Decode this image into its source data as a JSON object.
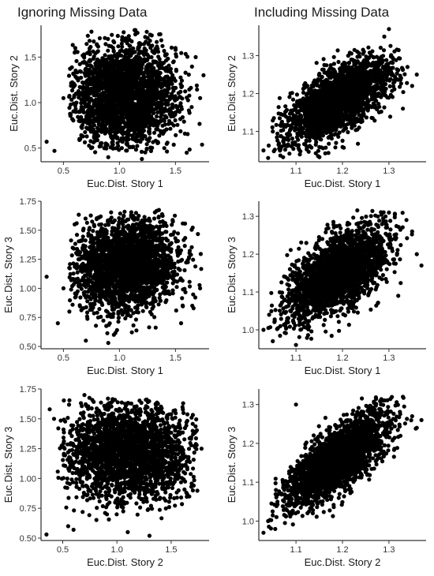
{
  "columns": [
    "Ignoring Missing Data",
    "Including Missing Data"
  ],
  "chart_data": [
    {
      "type": "scatter",
      "title": "",
      "xlabel": "Euc.Dist. Story 1",
      "ylabel": "Euc.Dist. Story 2",
      "xlim": [
        0.3,
        1.8
      ],
      "ylim": [
        0.35,
        1.85
      ],
      "xticks": [
        0.5,
        1.0,
        1.5
      ],
      "xtick_labels": [
        "0.5",
        "1.0",
        "1.5"
      ],
      "yticks": [
        0.5,
        1.0,
        1.5
      ],
      "ytick_labels": [
        "0.5",
        "1.0",
        "1.5"
      ],
      "grid": false,
      "cloud": {
        "mean": [
          1.05,
          1.08
        ],
        "sd": [
          0.23,
          0.28
        ],
        "corr": 0.0,
        "n": 2500,
        "bounds_x": [
          0.55,
          1.75
        ],
        "bounds_y": [
          0.45,
          1.8
        ]
      },
      "x": [
        0.35,
        0.42,
        0.5,
        0.6,
        0.65,
        1.5,
        1.6,
        1.68,
        1.72,
        1.75,
        0.75,
        1.4,
        1.2,
        0.9
      ],
      "y": [
        0.57,
        0.47,
        1.05,
        1.55,
        0.6,
        1.6,
        0.45,
        1.5,
        1.05,
        1.3,
        1.78,
        0.5,
        0.38,
        0.4
      ]
    },
    {
      "type": "scatter",
      "title": "",
      "xlabel": "Euc.Dist. Story 1",
      "ylabel": "Euc.Dist. Story 2",
      "xlim": [
        1.02,
        1.38
      ],
      "ylim": [
        1.02,
        1.38
      ],
      "xticks": [
        1.1,
        1.2,
        1.3
      ],
      "xtick_labels": [
        "1.1",
        "1.2",
        "1.3"
      ],
      "yticks": [
        1.1,
        1.2,
        1.3
      ],
      "ytick_labels": [
        "1.1",
        "1.2",
        "1.3"
      ],
      "grid": false,
      "cloud": {
        "mean": [
          1.19,
          1.18
        ],
        "sd": [
          0.055,
          0.055
        ],
        "corr": 0.65,
        "n": 2500,
        "bounds_x": [
          1.04,
          1.34
        ],
        "bounds_y": [
          1.03,
          1.33
        ]
      },
      "x": [
        1.03,
        1.04,
        1.05,
        1.35,
        1.34,
        1.33,
        1.36,
        1.3,
        1.29
      ],
      "y": [
        1.05,
        1.03,
        1.1,
        1.22,
        1.27,
        1.16,
        1.25,
        1.37,
        1.35
      ]
    },
    {
      "type": "scatter",
      "title": "",
      "xlabel": "Euc.Dist. Story 1",
      "ylabel": "Euc.Dist. Story 3",
      "xlim": [
        0.3,
        1.8
      ],
      "ylim": [
        0.48,
        1.75
      ],
      "xticks": [
        0.5,
        1.0,
        1.5
      ],
      "xtick_labels": [
        "0.5",
        "1.0",
        "1.5"
      ],
      "yticks": [
        0.5,
        0.75,
        1.0,
        1.25,
        1.5,
        1.75
      ],
      "ytick_labels": [
        "0.50",
        "0.75",
        "1.00",
        "1.25",
        "1.50",
        "1.75"
      ],
      "grid": false,
      "cloud": {
        "mean": [
          1.05,
          1.2
        ],
        "sd": [
          0.23,
          0.2
        ],
        "corr": 0.05,
        "n": 2500,
        "bounds_x": [
          0.55,
          1.75
        ],
        "bounds_y": [
          0.6,
          1.68
        ]
      },
      "x": [
        0.35,
        0.45,
        0.5,
        0.7,
        0.9,
        0.95,
        1.65,
        1.72,
        0.6,
        1.55
      ],
      "y": [
        1.1,
        0.7,
        1.0,
        0.55,
        0.53,
        0.6,
        0.85,
        1.0,
        1.55,
        0.7
      ]
    },
    {
      "type": "scatter",
      "title": "",
      "xlabel": "Euc.Dist. Story 1",
      "ylabel": "Euc.Dist. Story 3",
      "xlim": [
        1.02,
        1.38
      ],
      "ylim": [
        0.95,
        1.34
      ],
      "xticks": [
        1.1,
        1.2,
        1.3
      ],
      "xtick_labels": [
        "1.1",
        "1.2",
        "1.3"
      ],
      "yticks": [
        1.0,
        1.1,
        1.2,
        1.3
      ],
      "ytick_labels": [
        "1.0",
        "1.1",
        "1.2",
        "1.3"
      ],
      "grid": false,
      "cloud": {
        "mean": [
          1.19,
          1.15
        ],
        "sd": [
          0.055,
          0.06
        ],
        "corr": 0.6,
        "n": 2500,
        "bounds_x": [
          1.04,
          1.35
        ],
        "bounds_y": [
          0.97,
          1.32
        ]
      },
      "x": [
        1.03,
        1.05,
        1.1,
        1.35,
        1.36,
        1.37,
        1.3,
        1.32
      ],
      "y": [
        1.0,
        0.97,
        0.96,
        1.26,
        1.2,
        1.17,
        1.31,
        1.09
      ],
      "_note_": ""
    },
    {
      "type": "scatter",
      "title": "",
      "xlabel": "Euc.Dist. Story 2",
      "ylabel": "Euc.Dist. Story 3",
      "xlim": [
        0.3,
        1.85
      ],
      "ylim": [
        0.48,
        1.75
      ],
      "xticks": [
        0.5,
        1.0,
        1.5
      ],
      "xtick_labels": [
        "0.5",
        "1.0",
        "1.5"
      ],
      "yticks": [
        0.5,
        0.75,
        1.0,
        1.25,
        1.5,
        1.75
      ],
      "ytick_labels": [
        "0.50",
        "0.75",
        "1.00",
        "1.25",
        "1.50",
        "1.75"
      ],
      "grid": false,
      "cloud": {
        "mean": [
          1.1,
          1.22
        ],
        "sd": [
          0.3,
          0.2
        ],
        "corr": 0.0,
        "n": 2500,
        "bounds_x": [
          0.45,
          1.75
        ],
        "bounds_y": [
          0.65,
          1.68
        ]
      },
      "x": [
        0.35,
        0.38,
        0.42,
        0.55,
        0.6,
        1.1,
        1.3,
        1.7,
        1.78,
        0.7
      ],
      "y": [
        0.53,
        1.58,
        1.5,
        0.6,
        0.57,
        0.55,
        0.52,
        0.9,
        1.25,
        1.7
      ]
    },
    {
      "type": "scatter",
      "title": "",
      "xlabel": "Euc.Dist. Story 2",
      "ylabel": "Euc.Dist. Story 3",
      "xlim": [
        1.02,
        1.38
      ],
      "ylim": [
        0.95,
        1.34
      ],
      "xticks": [
        1.1,
        1.2,
        1.3
      ],
      "xtick_labels": [
        "1.1",
        "1.2",
        "1.3"
      ],
      "yticks": [
        1.0,
        1.1,
        1.2,
        1.3
      ],
      "ytick_labels": [
        "1.0",
        "1.1",
        "1.2",
        "1.3"
      ],
      "grid": false,
      "cloud": {
        "mean": [
          1.19,
          1.16
        ],
        "sd": [
          0.055,
          0.06
        ],
        "corr": 0.75,
        "n": 2500,
        "bounds_x": [
          1.04,
          1.36
        ],
        "bounds_y": [
          0.97,
          1.32
        ]
      },
      "x": [
        1.03,
        1.04,
        1.06,
        1.1,
        1.35,
        1.36,
        1.37,
        1.33
      ],
      "y": [
        0.97,
        1.0,
        1.05,
        1.3,
        1.27,
        1.24,
        1.26,
        1.32
      ]
    }
  ]
}
